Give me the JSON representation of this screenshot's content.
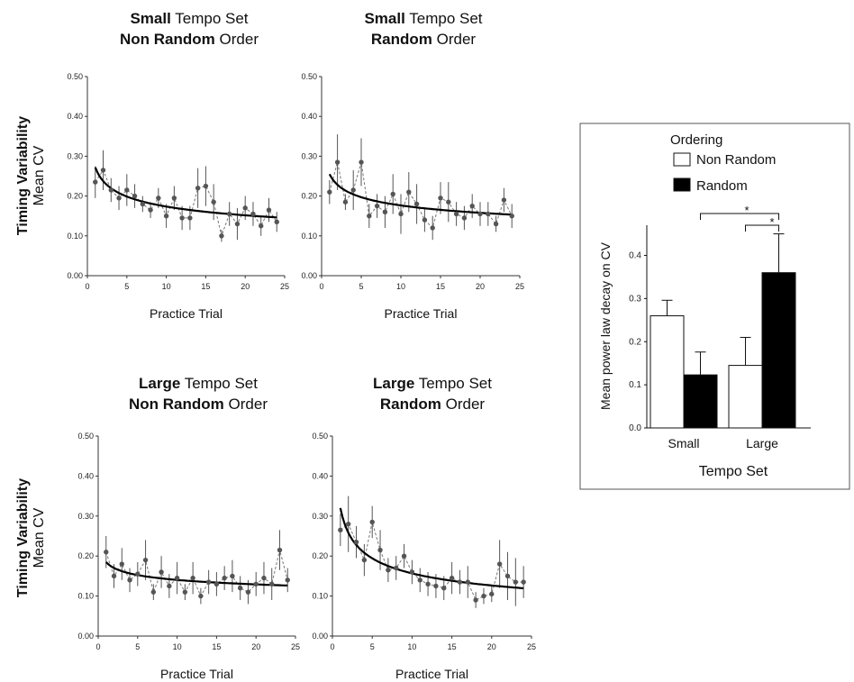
{
  "y_title": {
    "bold": "Timing Variability",
    "normal": "Mean CV"
  },
  "panels": [
    {
      "title1_bold": "Small",
      "title1_rest": " Tempo Set",
      "title2_bold": "Non Random",
      "title2_rest": " Order"
    },
    {
      "title1_bold": "Small",
      "title1_rest": " Tempo Set",
      "title2_bold": "Random",
      "title2_rest": " Order"
    },
    {
      "title1_bold": "Large",
      "title1_rest": " Tempo Set",
      "title2_bold": "Non Random",
      "title2_rest": " Order"
    },
    {
      "title1_bold": "Large",
      "title1_rest": " Tempo Set",
      "title2_bold": "Random",
      "title2_rest": " Order"
    }
  ],
  "chart_data": [
    {
      "type": "line",
      "xlabel": "Practice Trial",
      "ylabel": "Timing Variability Mean CV",
      "xlim": [
        0,
        25
      ],
      "ylim": [
        0,
        0.5
      ],
      "xticks": [
        0,
        5,
        10,
        15,
        20,
        25
      ],
      "yticks": [
        "0.00",
        "0.10",
        "0.20",
        "0.30",
        "0.40",
        "0.50"
      ],
      "x": [
        1,
        2,
        3,
        4,
        5,
        6,
        7,
        8,
        9,
        10,
        11,
        12,
        13,
        14,
        15,
        16,
        17,
        18,
        19,
        20,
        21,
        22,
        23,
        24
      ],
      "values": [
        0.235,
        0.265,
        0.215,
        0.195,
        0.215,
        0.2,
        0.18,
        0.165,
        0.195,
        0.15,
        0.195,
        0.145,
        0.145,
        0.22,
        0.225,
        0.185,
        0.1,
        0.155,
        0.13,
        0.17,
        0.155,
        0.125,
        0.165,
        0.135
      ],
      "errors": [
        0.04,
        0.05,
        0.03,
        0.03,
        0.04,
        0.03,
        0.02,
        0.02,
        0.025,
        0.03,
        0.03,
        0.03,
        0.03,
        0.05,
        0.05,
        0.045,
        0.015,
        0.03,
        0.04,
        0.03,
        0.03,
        0.025,
        0.03,
        0.025
      ],
      "fit": {
        "a": 0.272,
        "b": 0.195
      }
    },
    {
      "type": "line",
      "xlabel": "Practice Trial",
      "ylabel": "Timing Variability Mean CV",
      "xlim": [
        0,
        25
      ],
      "ylim": [
        0,
        0.5
      ],
      "xticks": [
        0,
        5,
        10,
        15,
        20,
        25
      ],
      "yticks": [
        "0.00",
        "0.10",
        "0.20",
        "0.30",
        "0.40",
        "0.50"
      ],
      "x": [
        1,
        2,
        3,
        4,
        5,
        6,
        7,
        8,
        9,
        10,
        11,
        12,
        13,
        14,
        15,
        16,
        17,
        18,
        19,
        20,
        21,
        22,
        23,
        24
      ],
      "values": [
        0.21,
        0.285,
        0.185,
        0.215,
        0.285,
        0.15,
        0.175,
        0.16,
        0.205,
        0.155,
        0.21,
        0.18,
        0.14,
        0.12,
        0.195,
        0.185,
        0.155,
        0.145,
        0.175,
        0.155,
        0.155,
        0.13,
        0.19,
        0.15
      ],
      "errors": [
        0.03,
        0.07,
        0.02,
        0.05,
        0.06,
        0.03,
        0.03,
        0.04,
        0.05,
        0.05,
        0.05,
        0.05,
        0.03,
        0.03,
        0.04,
        0.05,
        0.03,
        0.03,
        0.03,
        0.03,
        0.03,
        0.02,
        0.03,
        0.03
      ],
      "fit": {
        "a": 0.255,
        "b": 0.16
      }
    },
    {
      "type": "line",
      "xlabel": "Practice Trial",
      "ylabel": "Timing Variability Mean CV",
      "xlim": [
        0,
        25
      ],
      "ylim": [
        0,
        0.5
      ],
      "xticks": [
        0,
        5,
        10,
        15,
        20,
        25
      ],
      "yticks": [
        "0.00",
        "0.10",
        "0.20",
        "0.30",
        "0.40",
        "0.50"
      ],
      "x": [
        1,
        2,
        3,
        4,
        5,
        6,
        7,
        8,
        9,
        10,
        11,
        12,
        13,
        14,
        15,
        16,
        17,
        18,
        19,
        20,
        21,
        22,
        23,
        24
      ],
      "values": [
        0.21,
        0.15,
        0.18,
        0.14,
        0.155,
        0.19,
        0.11,
        0.16,
        0.125,
        0.145,
        0.11,
        0.145,
        0.1,
        0.135,
        0.13,
        0.145,
        0.15,
        0.12,
        0.11,
        0.13,
        0.145,
        0.13,
        0.215,
        0.14
      ],
      "errors": [
        0.04,
        0.03,
        0.04,
        0.03,
        0.03,
        0.05,
        0.02,
        0.04,
        0.03,
        0.04,
        0.02,
        0.04,
        0.02,
        0.03,
        0.03,
        0.03,
        0.04,
        0.03,
        0.03,
        0.03,
        0.04,
        0.04,
        0.05,
        0.03
      ],
      "fit": {
        "a": 0.185,
        "b": 0.12
      }
    },
    {
      "type": "line",
      "xlabel": "Practice Trial",
      "ylabel": "Timing Variability Mean CV",
      "xlim": [
        0,
        25
      ],
      "ylim": [
        0,
        0.5
      ],
      "xticks": [
        0,
        5,
        10,
        15,
        20,
        25
      ],
      "yticks": [
        "0.00",
        "0.10",
        "0.20",
        "0.30",
        "0.40",
        "0.50"
      ],
      "x": [
        1,
        2,
        3,
        4,
        5,
        6,
        7,
        8,
        9,
        10,
        11,
        12,
        13,
        14,
        15,
        16,
        17,
        18,
        19,
        20,
        21,
        22,
        23,
        24
      ],
      "values": [
        0.265,
        0.28,
        0.235,
        0.19,
        0.285,
        0.215,
        0.165,
        0.17,
        0.2,
        0.16,
        0.14,
        0.13,
        0.125,
        0.12,
        0.145,
        0.135,
        0.135,
        0.09,
        0.1,
        0.105,
        0.18,
        0.15,
        0.135,
        0.135
      ],
      "errors": [
        0.04,
        0.07,
        0.04,
        0.04,
        0.04,
        0.05,
        0.03,
        0.03,
        0.03,
        0.03,
        0.03,
        0.03,
        0.03,
        0.03,
        0.04,
        0.03,
        0.04,
        0.02,
        0.02,
        0.02,
        0.06,
        0.06,
        0.06,
        0.04
      ],
      "fit": {
        "a": 0.32,
        "b": 0.31
      }
    },
    {
      "type": "bar",
      "categories": [
        "Small",
        "Large"
      ],
      "series": [
        {
          "name": "Non Random",
          "values": [
            0.26,
            0.145
          ],
          "errors": [
            0.036,
            0.065
          ],
          "color": "#ffffff"
        },
        {
          "name": "Random",
          "values": [
            0.123,
            0.36
          ],
          "errors": [
            0.053,
            0.09
          ],
          "color": "#000000"
        }
      ],
      "xlabel": "Tempo Set",
      "ylabel": "Mean power law decay on CV",
      "legend_title": "Ordering",
      "ylim": [
        0,
        0.45
      ],
      "yticks": [
        "0.0",
        "0.1",
        "0.2",
        "0.3",
        "0.4"
      ],
      "significance": [
        "*",
        "*"
      ]
    }
  ]
}
